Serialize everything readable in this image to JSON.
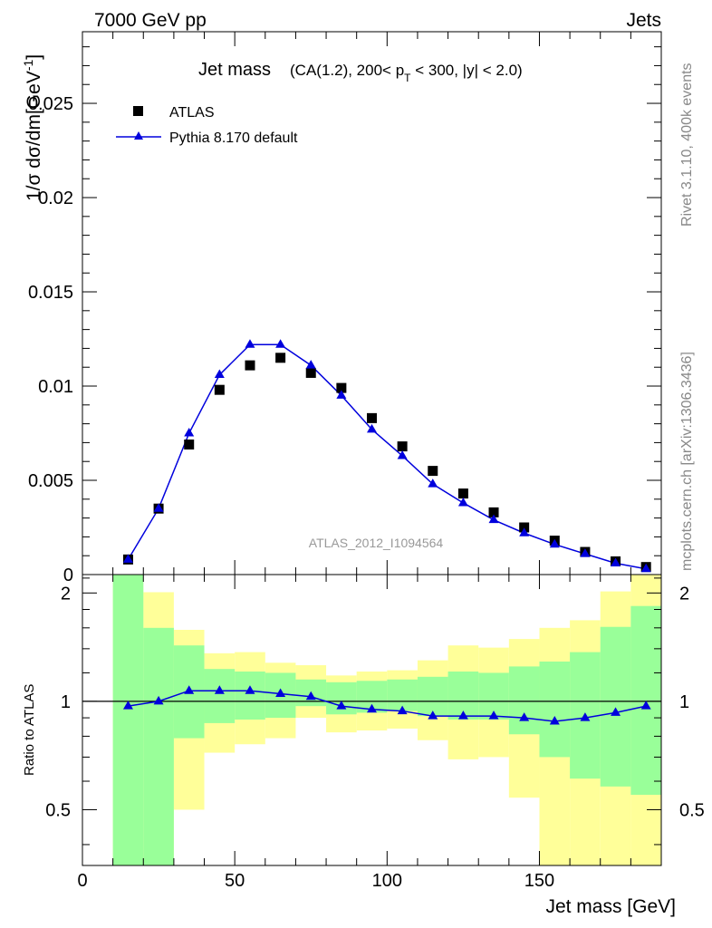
{
  "header": {
    "energy": "7000 GeV pp",
    "category": "Jets"
  },
  "side_labels": {
    "rivet": "Rivet 3.1.10,  400k events",
    "mcplots": "mcplots.cern.ch [arXiv:1306.3436]"
  },
  "chart_data": [
    {
      "type": "scatter",
      "title": "Jet mass",
      "subtitle": "(CA(1.2), 200< p_T < 300, |y| < 2.0)",
      "subtitle_parts": {
        "a": "(CA(1.2), 200< p",
        "sub": "T",
        "b": " < 300, |y| < 2.0)"
      },
      "analysis": "ATLAS_2012_I1094564",
      "ylabel": "1/σ dσ/dm",
      "ylabel_unit": "[GeV",
      "ylabel_sup": "-1",
      "ylabel_close": "]",
      "xlim": [
        0,
        190
      ],
      "ylim": [
        0,
        0.0288
      ],
      "yticks": [
        0,
        0.005,
        0.01,
        0.015,
        0.02,
        0.025
      ],
      "ytick_labels": [
        "0",
        "0.005",
        "0.01",
        "0.015",
        "0.02",
        "0.025"
      ],
      "legend_position": "top-left",
      "x": [
        15,
        25,
        35,
        45,
        55,
        65,
        75,
        85,
        95,
        105,
        115,
        125,
        135,
        145,
        155,
        165,
        175,
        185
      ],
      "series": [
        {
          "name": "ATLAS",
          "marker": "square",
          "color": "#000000",
          "values": [
            0.0008,
            0.0035,
            0.0069,
            0.0098,
            0.0111,
            0.0115,
            0.0107,
            0.0099,
            0.0083,
            0.0068,
            0.0055,
            0.0043,
            0.0033,
            0.0025,
            0.0018,
            0.0012,
            0.0007,
            0.0004
          ]
        },
        {
          "name": "Pythia 8.170 default",
          "marker": "triangle",
          "color": "#0000dd",
          "values": [
            0.0008,
            0.0035,
            0.0075,
            0.0106,
            0.0122,
            0.0122,
            0.0111,
            0.0095,
            0.0077,
            0.0063,
            0.0048,
            0.0038,
            0.0029,
            0.0022,
            0.0016,
            0.0011,
            0.0006,
            0.0003
          ]
        }
      ]
    },
    {
      "type": "line",
      "ylabel": "Ratio to ATLAS",
      "xlabel": "Jet mass [GeV]",
      "xlim": [
        0,
        190
      ],
      "ylim": [
        0.35,
        2.25
      ],
      "yticks": [
        0.5,
        1,
        2
      ],
      "ytick_labels": [
        "0.5",
        "1",
        "2"
      ],
      "xticks": [
        0,
        50,
        100,
        150
      ],
      "xtick_labels": [
        "0",
        "50",
        "100",
        "150"
      ],
      "reference": 1,
      "bin_edges": [
        10,
        20,
        30,
        40,
        50,
        60,
        70,
        80,
        90,
        100,
        110,
        120,
        130,
        140,
        150,
        160,
        170,
        180,
        190
      ],
      "bands": [
        {
          "name": "total uncertainty",
          "color": "#ffff99",
          "low": [
            0.35,
            0.35,
            0.5,
            0.72,
            0.76,
            0.79,
            0.9,
            0.82,
            0.83,
            0.84,
            0.78,
            0.69,
            0.7,
            0.54,
            0.35,
            0.35,
            0.35,
            0.35
          ],
          "high": [
            2.25,
            2.01,
            1.58,
            1.36,
            1.37,
            1.28,
            1.26,
            1.18,
            1.21,
            1.22,
            1.3,
            1.43,
            1.41,
            1.49,
            1.6,
            1.68,
            2.02,
            2.25
          ]
        },
        {
          "name": "stat uncertainty",
          "color": "#99ff99",
          "low": [
            0.35,
            0.35,
            0.79,
            0.87,
            0.89,
            0.9,
            0.97,
            0.92,
            0.93,
            0.94,
            0.91,
            0.89,
            0.89,
            0.81,
            0.7,
            0.61,
            0.58,
            0.55
          ],
          "high": [
            2.25,
            1.6,
            1.43,
            1.23,
            1.21,
            1.2,
            1.15,
            1.13,
            1.14,
            1.15,
            1.17,
            1.21,
            1.2,
            1.25,
            1.29,
            1.37,
            1.61,
            1.84
          ]
        }
      ],
      "series": [
        {
          "name": "Pythia 8.170 default",
          "color": "#0000dd",
          "x": [
            15,
            25,
            35,
            45,
            55,
            65,
            75,
            85,
            95,
            105,
            115,
            125,
            135,
            145,
            155,
            165,
            175,
            185
          ],
          "values": [
            0.97,
            1.0,
            1.07,
            1.07,
            1.07,
            1.05,
            1.03,
            0.97,
            0.95,
            0.94,
            0.91,
            0.91,
            0.91,
            0.9,
            0.88,
            0.9,
            0.93,
            0.97
          ]
        }
      ]
    }
  ]
}
